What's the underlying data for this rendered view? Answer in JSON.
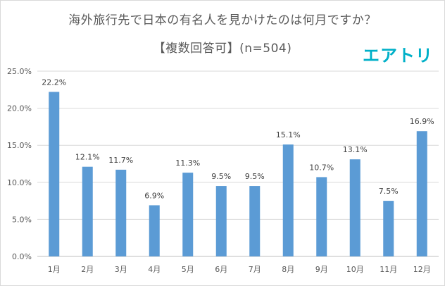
{
  "chart_data": {
    "type": "bar",
    "title": "海外旅行先で日本の有名人を見かけたのは何月ですか？",
    "subtitle": "【複数回答可】(n=504)",
    "categories": [
      "1月",
      "2月",
      "3月",
      "4月",
      "5月",
      "6月",
      "7月",
      "8月",
      "9月",
      "10月",
      "11月",
      "12月"
    ],
    "values": [
      22.2,
      12.1,
      11.7,
      6.9,
      11.3,
      9.5,
      9.5,
      15.1,
      10.7,
      13.1,
      7.5,
      16.9
    ],
    "value_labels": [
      "22.2%",
      "12.1%",
      "11.7%",
      "6.9%",
      "11.3%",
      "9.5%",
      "9.5%",
      "15.1%",
      "10.7%",
      "13.1%",
      "7.5%",
      "16.9%"
    ],
    "yticks": [
      "0.0%",
      "5.0%",
      "10.0%",
      "15.0%",
      "20.0%",
      "25.0%"
    ],
    "ylim": [
      0,
      25
    ],
    "xlabel": "",
    "ylabel": "",
    "bar_color": "#5b9bd5",
    "grid": true
  },
  "logo_text": "エアトリ"
}
